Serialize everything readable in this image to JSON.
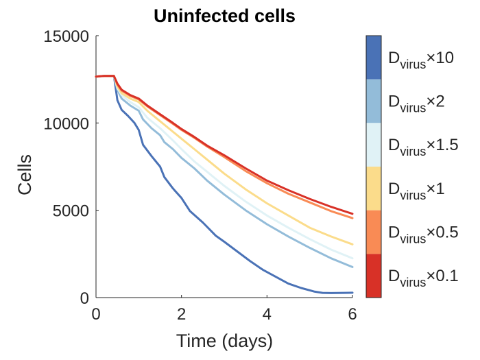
{
  "chart_data": {
    "type": "line",
    "title": "Uninfected cells",
    "xlabel": "Time (days)",
    "ylabel": "Cells",
    "xlim": [
      0,
      6
    ],
    "ylim": [
      0,
      15000
    ],
    "xticks": [
      "0",
      "2",
      "4",
      "6"
    ],
    "yticks": [
      "0",
      "5000",
      "10000",
      "15000"
    ],
    "grid": false,
    "legend": "colorbar-right",
    "series": [
      {
        "name": "D_virus ×10",
        "color": "#4a72b6",
        "x": [
          0,
          0.1,
          0.2,
          0.3,
          0.42,
          0.5,
          0.6,
          0.75,
          0.9,
          1.0,
          1.1,
          1.3,
          1.5,
          1.6,
          1.8,
          2.0,
          2.2,
          2.5,
          2.8,
          3.0,
          3.3,
          3.6,
          3.9,
          4.2,
          4.5,
          4.8,
          5.1,
          5.3,
          5.5,
          5.8,
          6.0
        ],
        "y": [
          12650,
          12680,
          12690,
          12690,
          12690,
          11300,
          10750,
          10400,
          10000,
          9600,
          8750,
          8100,
          7500,
          6900,
          6250,
          5700,
          4950,
          4300,
          3550,
          3200,
          2650,
          2100,
          1600,
          1200,
          800,
          550,
          350,
          270,
          260,
          270,
          280
        ]
      },
      {
        "name": "D_virus ×2",
        "color": "#93bcd9",
        "x": [
          0,
          0.1,
          0.2,
          0.3,
          0.42,
          0.5,
          0.6,
          0.8,
          1.0,
          1.1,
          1.3,
          1.5,
          1.6,
          1.8,
          2.0,
          2.3,
          2.6,
          3.0,
          3.5,
          4.0,
          4.5,
          5.0,
          5.5,
          6.0
        ],
        "y": [
          12650,
          12680,
          12690,
          12690,
          12690,
          11900,
          11400,
          11000,
          10700,
          10200,
          9700,
          9300,
          8900,
          8500,
          8000,
          7400,
          6700,
          5900,
          5000,
          4200,
          3500,
          2850,
          2250,
          1750
        ]
      },
      {
        "name": "D_virus ×1.5",
        "color": "#e0f2f6",
        "x": [
          0,
          0.1,
          0.2,
          0.3,
          0.42,
          0.5,
          0.6,
          0.8,
          1.0,
          1.2,
          1.5,
          1.8,
          2.0,
          2.3,
          2.6,
          3.0,
          3.5,
          4.0,
          4.5,
          5.0,
          5.5,
          6.0
        ],
        "y": [
          12650,
          12680,
          12690,
          12690,
          12690,
          12000,
          11600,
          11200,
          10900,
          10300,
          9700,
          9000,
          8500,
          7800,
          7200,
          6400,
          5500,
          4700,
          4000,
          3350,
          2750,
          2250
        ]
      },
      {
        "name": "D_virus ×1",
        "color": "#fbdc8b",
        "x": [
          0,
          0.1,
          0.2,
          0.3,
          0.42,
          0.5,
          0.6,
          0.8,
          1.0,
          1.2,
          1.5,
          1.8,
          2.0,
          2.3,
          2.6,
          3.0,
          3.5,
          4.0,
          4.5,
          5.0,
          5.5,
          6.0
        ],
        "y": [
          12650,
          12680,
          12690,
          12690,
          12690,
          12100,
          11700,
          11400,
          11200,
          10700,
          10100,
          9500,
          9100,
          8500,
          7900,
          7100,
          6200,
          5400,
          4700,
          4000,
          3500,
          3050
        ]
      },
      {
        "name": "D_virus ×0.5",
        "color": "#f98b55",
        "x": [
          0,
          0.1,
          0.2,
          0.3,
          0.42,
          0.5,
          0.6,
          0.8,
          1.0,
          1.2,
          1.5,
          1.8,
          2.0,
          2.3,
          2.6,
          3.0,
          3.5,
          4.0,
          4.5,
          5.0,
          5.5,
          6.0
        ],
        "y": [
          12650,
          12680,
          12690,
          12690,
          12690,
          12200,
          11850,
          11550,
          11350,
          10950,
          10450,
          9950,
          9600,
          9150,
          8650,
          8050,
          7250,
          6550,
          5950,
          5450,
          4950,
          4550
        ]
      },
      {
        "name": "D_virus ×0.1",
        "color": "#d83127",
        "x": [
          0,
          0.1,
          0.2,
          0.3,
          0.42,
          0.5,
          0.6,
          0.8,
          1.0,
          1.2,
          1.5,
          1.8,
          2.0,
          2.3,
          2.6,
          3.0,
          3.5,
          4.0,
          4.5,
          5.0,
          5.5,
          6.0
        ],
        "y": [
          12650,
          12680,
          12690,
          12690,
          12690,
          12250,
          11900,
          11600,
          11400,
          11000,
          10500,
          10000,
          9650,
          9200,
          8700,
          8150,
          7400,
          6700,
          6150,
          5650,
          5200,
          4800
        ]
      }
    ],
    "colorbar": [
      {
        "color": "#4a72b6",
        "base": "D",
        "sub": "virus",
        "mult": "×10"
      },
      {
        "color": "#93bcd9",
        "base": "D",
        "sub": "virus",
        "mult": "×2"
      },
      {
        "color": "#e0f2f6",
        "base": "D",
        "sub": "virus",
        "mult": "×1.5"
      },
      {
        "color": "#fbdc8b",
        "base": "D",
        "sub": "virus",
        "mult": "×1"
      },
      {
        "color": "#f98b55",
        "base": "D",
        "sub": "virus",
        "mult": "×0.5"
      },
      {
        "color": "#d83127",
        "base": "D",
        "sub": "virus",
        "mult": "×0.1"
      }
    ]
  }
}
